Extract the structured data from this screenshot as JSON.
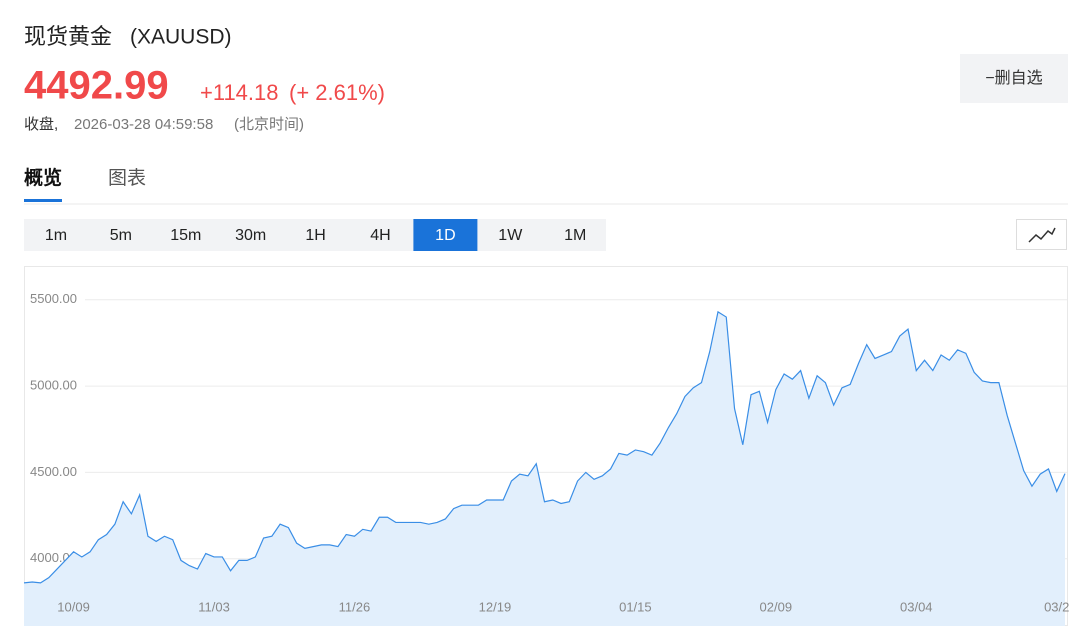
{
  "header": {
    "title": "现货黄金",
    "symbol": "(XAUUSD)"
  },
  "quote": {
    "price": "4492.99",
    "change": "+114.18",
    "change_pct": "(+ 2.61%)",
    "status": "收盘,",
    "time": "2026-03-28 04:59:58",
    "timezone": "(北京时间)"
  },
  "actions": {
    "remove_watchlist": "−删自选"
  },
  "tabs": [
    "概览",
    "图表"
  ],
  "active_tab": "概览",
  "timeframes": [
    "1m",
    "5m",
    "15m",
    "30m",
    "1H",
    "4H",
    "1D",
    "1W",
    "1M"
  ],
  "active_timeframe": "1D",
  "chart_data": {
    "type": "area",
    "categories": [
      null,
      null,
      null,
      null,
      null,
      null,
      "10/09",
      null,
      null,
      null,
      null,
      null,
      null,
      null,
      null,
      null,
      null,
      null,
      null,
      null,
      null,
      null,
      null,
      "11/03",
      null,
      null,
      null,
      null,
      null,
      null,
      null,
      null,
      null,
      null,
      null,
      null,
      null,
      null,
      null,
      null,
      "11/26",
      null,
      null,
      null,
      null,
      null,
      null,
      null,
      null,
      null,
      null,
      null,
      null,
      null,
      null,
      null,
      null,
      "12/19",
      null,
      null,
      null,
      null,
      null,
      null,
      null,
      null,
      null,
      null,
      null,
      null,
      null,
      null,
      null,
      null,
      "01/15",
      null,
      null,
      null,
      null,
      null,
      null,
      null,
      null,
      null,
      null,
      null,
      null,
      null,
      null,
      null,
      null,
      "02/09",
      null,
      null,
      null,
      null,
      null,
      null,
      null,
      null,
      null,
      null,
      null,
      null,
      null,
      null,
      null,
      null,
      "03/04",
      null,
      null,
      null,
      null,
      null,
      null,
      null,
      null,
      null,
      null,
      null,
      null,
      null,
      null,
      null,
      null,
      "03/2",
      null
    ],
    "values": [
      3860,
      3865,
      3860,
      3890,
      3940,
      3990,
      4040,
      4010,
      4040,
      4110,
      4140,
      4200,
      4330,
      4260,
      4370,
      4130,
      4100,
      4130,
      4110,
      3990,
      3960,
      3940,
      4030,
      4010,
      4010,
      3930,
      3990,
      3990,
      4010,
      4120,
      4130,
      4200,
      4180,
      4090,
      4060,
      4070,
      4080,
      4080,
      4070,
      4140,
      4130,
      4170,
      4160,
      4240,
      4240,
      4210,
      4210,
      4210,
      4210,
      4200,
      4210,
      4230,
      4290,
      4310,
      4310,
      4310,
      4340,
      4340,
      4340,
      4450,
      4490,
      4480,
      4550,
      4330,
      4340,
      4320,
      4330,
      4450,
      4500,
      4460,
      4480,
      4520,
      4610,
      4600,
      4630,
      4620,
      4600,
      4670,
      4760,
      4840,
      4940,
      4990,
      5020,
      5200,
      5430,
      5400,
      4870,
      4660,
      4950,
      4970,
      4790,
      4980,
      5070,
      5040,
      5090,
      4930,
      5060,
      5020,
      4890,
      4990,
      5010,
      5130,
      5240,
      5160,
      5180,
      5200,
      5290,
      5330,
      5090,
      5150,
      5090,
      5180,
      5150,
      5210,
      5190,
      5080,
      5030,
      5020,
      5020,
      4830,
      4670,
      4510,
      4420,
      4490,
      4520,
      4390,
      4493
    ],
    "color": "#3a8ee6",
    "fill_color": "#e2effc",
    "ylim": [
      3610,
      5690
    ],
    "yticks": [
      {
        "value": 4000,
        "label": "4000.00"
      },
      {
        "value": 4500,
        "label": "4500.00"
      },
      {
        "value": 5000,
        "label": "5000.00"
      },
      {
        "value": 5500,
        "label": "5500.00"
      }
    ],
    "grid": true
  }
}
